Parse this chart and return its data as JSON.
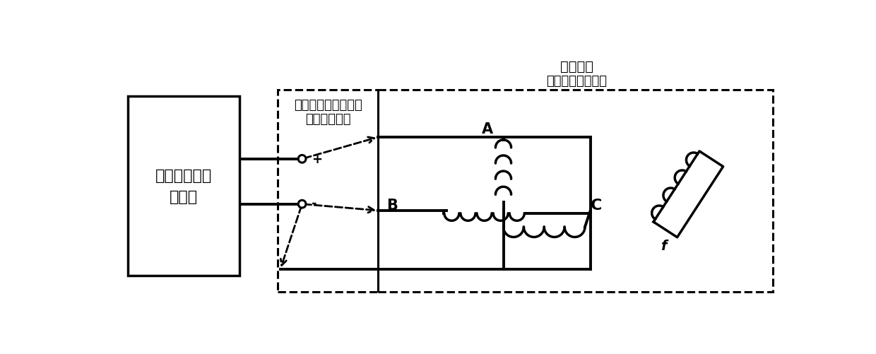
{
  "bg_color": "#ffffff",
  "fig_width": 12.4,
  "fig_height": 5.02,
  "label_generator": "直流阶跃电压\n发生器",
  "annotation_line1": "每两相之间施加一次",
  "annotation_line2": "直流阶跃电压",
  "title_motor": "同步电机",
  "title_rotor": "（转子位置任意）",
  "label_A": "A",
  "label_B": "B",
  "label_C": "C",
  "label_f": "f",
  "plus_sign": "+",
  "minus_sign": "-"
}
